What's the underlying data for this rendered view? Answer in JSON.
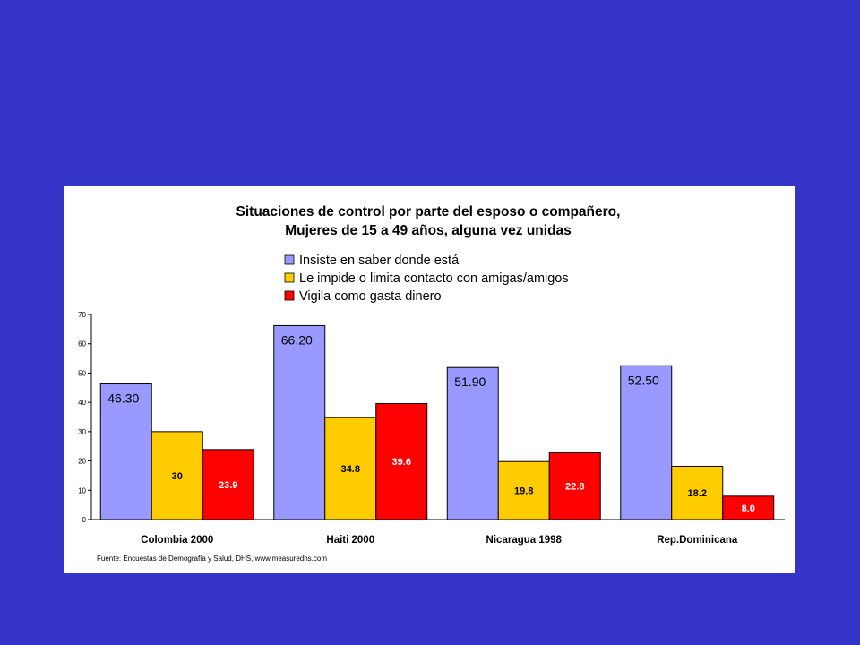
{
  "chart_data": {
    "type": "bar",
    "title_lines": [
      "Situaciones de control por parte del esposo o compañero,",
      "Mujeres de 15 a 49 años, alguna vez unidas"
    ],
    "categories": [
      "Colombia 2000",
      "Haiti 2000",
      "Nicaragua 1998",
      "Rep.Dominicana"
    ],
    "series": [
      {
        "name": "Insiste en saber donde está",
        "color": "#9999ff",
        "values": [
          46.3,
          66.2,
          51.9,
          52.5
        ],
        "labels": [
          "46.30",
          "66.20",
          "51.90",
          "52.50"
        ],
        "label_color": "#000000"
      },
      {
        "name": "Le impide o limita contacto con amigas/amigos",
        "color": "#ffcc00",
        "values": [
          30,
          34.8,
          19.8,
          18.2
        ],
        "labels": [
          "30",
          "34.8",
          "19.8",
          "18.2"
        ],
        "label_color": "#000000"
      },
      {
        "name": "Vigila como gasta dinero",
        "color": "#ff0000",
        "values": [
          23.9,
          39.6,
          22.8,
          8.0
        ],
        "labels": [
          "23.9",
          "39.6",
          "22.8",
          "8.0"
        ],
        "label_color": "#ffffff"
      }
    ],
    "ylim": [
      0,
      70
    ],
    "yticks": [
      0,
      10,
      20,
      30,
      40,
      50,
      60,
      70
    ],
    "xlabel": "",
    "ylabel": "",
    "legend_position": "top-center",
    "grid": false,
    "source": "Fuente: Encuestas de Demografía y Salud, DHS, www.measuredhs.com"
  },
  "colors": {
    "background": "#3434c8",
    "panel": "#ffffff"
  }
}
